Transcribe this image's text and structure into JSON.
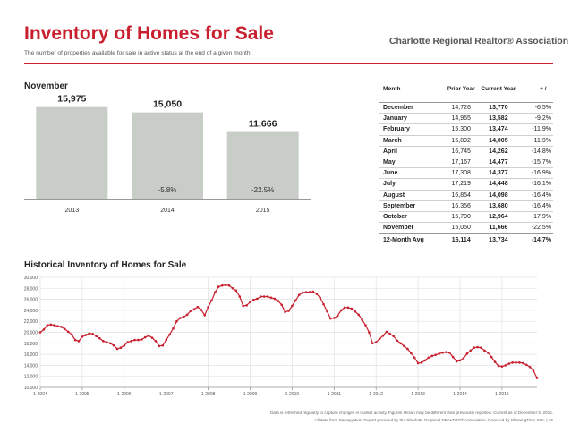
{
  "header": {
    "title": "Inventory of Homes for Sale",
    "subtitle": "The number of properties available for sale in active status at the end of a given month.",
    "logo_text": "Charlotte Regional Realtor® Association",
    "logo_icon": "house-roof-icon",
    "accent_color": "#c8202f"
  },
  "bar_section": {
    "label": "November"
  },
  "line_section": {
    "label": "Historical Inventory of Homes for Sale"
  },
  "table": {
    "headers": {
      "month": "Month",
      "prior": "Prior Year",
      "current": "Current Year",
      "change": "+ / –"
    },
    "rows": [
      {
        "month": "December",
        "prior": "14,726",
        "current": "13,770",
        "change": "-6.5%"
      },
      {
        "month": "January",
        "prior": "14,965",
        "current": "13,582",
        "change": "-9.2%"
      },
      {
        "month": "February",
        "prior": "15,300",
        "current": "13,474",
        "change": "-11.9%"
      },
      {
        "month": "March",
        "prior": "15,892",
        "current": "14,005",
        "change": "-11.9%"
      },
      {
        "month": "April",
        "prior": "16,745",
        "current": "14,262",
        "change": "-14.8%"
      },
      {
        "month": "May",
        "prior": "17,167",
        "current": "14,477",
        "change": "-15.7%"
      },
      {
        "month": "June",
        "prior": "17,308",
        "current": "14,377",
        "change": "-16.9%"
      },
      {
        "month": "July",
        "prior": "17,219",
        "current": "14,448",
        "change": "-16.1%"
      },
      {
        "month": "August",
        "prior": "16,854",
        "current": "14,098",
        "change": "-16.4%"
      },
      {
        "month": "September",
        "prior": "16,356",
        "current": "13,680",
        "change": "-16.4%"
      },
      {
        "month": "October",
        "prior": "15,790",
        "current": "12,964",
        "change": "-17.9%"
      },
      {
        "month": "November",
        "prior": "15,050",
        "current": "11,666",
        "change": "-22.5%"
      }
    ],
    "summary": {
      "month": "12-Month Avg",
      "prior": "16,114",
      "current": "13,734",
      "change": "-14.7%"
    }
  },
  "footnote": {
    "line1": "Data is refreshed regularly to capture changes in market activity. Figures shown may be different than previously reported. Current as of December 5, 2015.",
    "line2": "All data from CanopyMLS. Report provided by the Charlotte Regional REALTOR® Association. Powered by ShowingTime 10K.  |  15"
  },
  "chart_data": [
    {
      "type": "bar",
      "categories": [
        "2013",
        "2014",
        "2015"
      ],
      "values": [
        15975,
        15050,
        11666
      ],
      "value_labels": [
        "15,975",
        "15,050",
        "11,666"
      ],
      "change_labels": [
        "",
        "-5.8%",
        "-22.5%"
      ],
      "ylim": [
        0,
        17000
      ],
      "bar_color": "#c8cdc8",
      "grid": false
    },
    {
      "type": "line",
      "line_color": "#c8202f",
      "grid": true,
      "x_start": "2004-01",
      "x_step": "month",
      "xlim": [
        "2004-01",
        "2015-11"
      ],
      "x_ticks": [
        "1-2004",
        "1-2005",
        "1-2006",
        "1-2007",
        "1-2008",
        "1-2009",
        "1-2010",
        "1-2011",
        "1-2012",
        "1-2013",
        "1-2014",
        "1-2015"
      ],
      "ylim": [
        10000,
        30000
      ],
      "y_ticks": [
        "10,000",
        "12,000",
        "14,000",
        "16,000",
        "18,000",
        "20,000",
        "22,000",
        "24,000",
        "26,000",
        "28,000",
        "30,000"
      ],
      "y": [
        20000,
        20500,
        21300,
        21400,
        21300,
        21100,
        21000,
        20600,
        20100,
        19600,
        18600,
        18400,
        19200,
        19500,
        19800,
        19700,
        19300,
        18900,
        18400,
        18200,
        18000,
        17600,
        17000,
        17200,
        17600,
        18200,
        18400,
        18600,
        18600,
        18700,
        19100,
        19400,
        19000,
        18400,
        17500,
        17600,
        18600,
        19600,
        20700,
        22000,
        22600,
        22800,
        23200,
        23900,
        24200,
        24600,
        24100,
        23100,
        24600,
        25800,
        27300,
        28300,
        28500,
        28600,
        28500,
        28000,
        27600,
        26500,
        24800,
        24900,
        25500,
        25900,
        26100,
        26500,
        26500,
        26500,
        26300,
        26100,
        25700,
        25000,
        23700,
        23900,
        24800,
        25800,
        26800,
        27200,
        27300,
        27300,
        27400,
        27000,
        26300,
        25100,
        23800,
        22500,
        22600,
        23000,
        24000,
        24500,
        24500,
        24300,
        23800,
        23200,
        22300,
        21300,
        20000,
        18000,
        18200,
        18800,
        19400,
        20100,
        19700,
        19300,
        18500,
        18000,
        17500,
        17000,
        16200,
        15400,
        14400,
        14500,
        14900,
        15400,
        15700,
        15900,
        16100,
        16300,
        16400,
        16300,
        15500,
        14700,
        14900,
        15300,
        16100,
        16700,
        17200,
        17300,
        17200,
        16700,
        16300,
        15500,
        14600,
        13900,
        13800,
        14000,
        14300,
        14500,
        14500,
        14500,
        14400,
        14100,
        13700,
        13000,
        11700
      ]
    }
  ]
}
